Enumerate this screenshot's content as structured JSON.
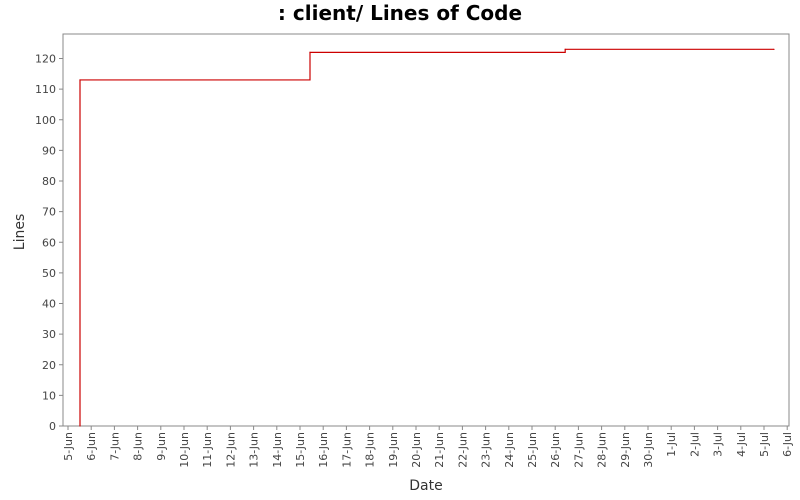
{
  "chart_data": {
    "type": "line",
    "step": true,
    "title": ": client/ Lines of Code",
    "xlabel": "Date",
    "ylabel": "Lines",
    "xlim": [
      "5-Jun",
      "6-Jul"
    ],
    "ylim": [
      0,
      128
    ],
    "grid": false,
    "x_ticks": [
      "5-Jun",
      "6-Jun",
      "7-Jun",
      "8-Jun",
      "9-Jun",
      "10-Jun",
      "11-Jun",
      "12-Jun",
      "13-Jun",
      "14-Jun",
      "15-Jun",
      "16-Jun",
      "17-Jun",
      "18-Jun",
      "19-Jun",
      "20-Jun",
      "21-Jun",
      "22-Jun",
      "23-Jun",
      "24-Jun",
      "25-Jun",
      "26-Jun",
      "27-Jun",
      "28-Jun",
      "29-Jun",
      "30-Jun",
      "1-Jul",
      "2-Jul",
      "3-Jul",
      "4-Jul",
      "5-Jul",
      "6-Jul"
    ],
    "y_ticks": [
      0,
      10,
      20,
      30,
      40,
      50,
      60,
      70,
      80,
      90,
      100,
      110,
      120
    ],
    "series": [
      {
        "color": "#cc0000",
        "x": [
          "5-Jun",
          "5-Jun",
          "15-Jun",
          "26-Jun",
          "5-Jul"
        ],
        "y": [
          0,
          113,
          122,
          123,
          123
        ]
      }
    ]
  }
}
